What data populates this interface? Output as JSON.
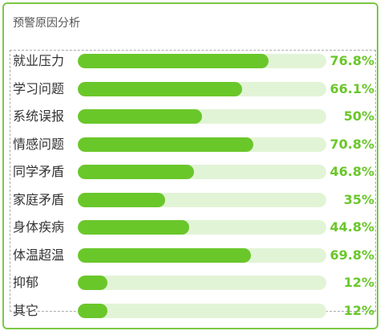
{
  "panel": {
    "title": "预警原因分析"
  },
  "colors": {
    "border": "#7ac943",
    "fill": "#6ac72a",
    "track": "#e2f4d6",
    "value_text": "#6ac72a"
  },
  "chart_data": {
    "type": "bar",
    "orientation": "horizontal",
    "title": "预警原因分析",
    "categories": [
      "就业压力",
      "学习问题",
      "系统误报",
      "情感问题",
      "同学矛盾",
      "家庭矛盾",
      "身体疾病",
      "体温超温",
      "抑郁",
      "其它"
    ],
    "values": [
      76.8,
      66.1,
      50,
      70.8,
      46.8,
      35,
      44.8,
      69.8,
      12,
      12
    ],
    "value_labels": [
      "76.8%",
      "66.1%",
      "50%",
      "70.8%",
      "46.8%",
      "35%",
      "44.8%",
      "69.8%",
      "12%",
      "12%"
    ],
    "unit": "%",
    "xlim": [
      0,
      100
    ],
    "grid": false,
    "legend": "none"
  }
}
